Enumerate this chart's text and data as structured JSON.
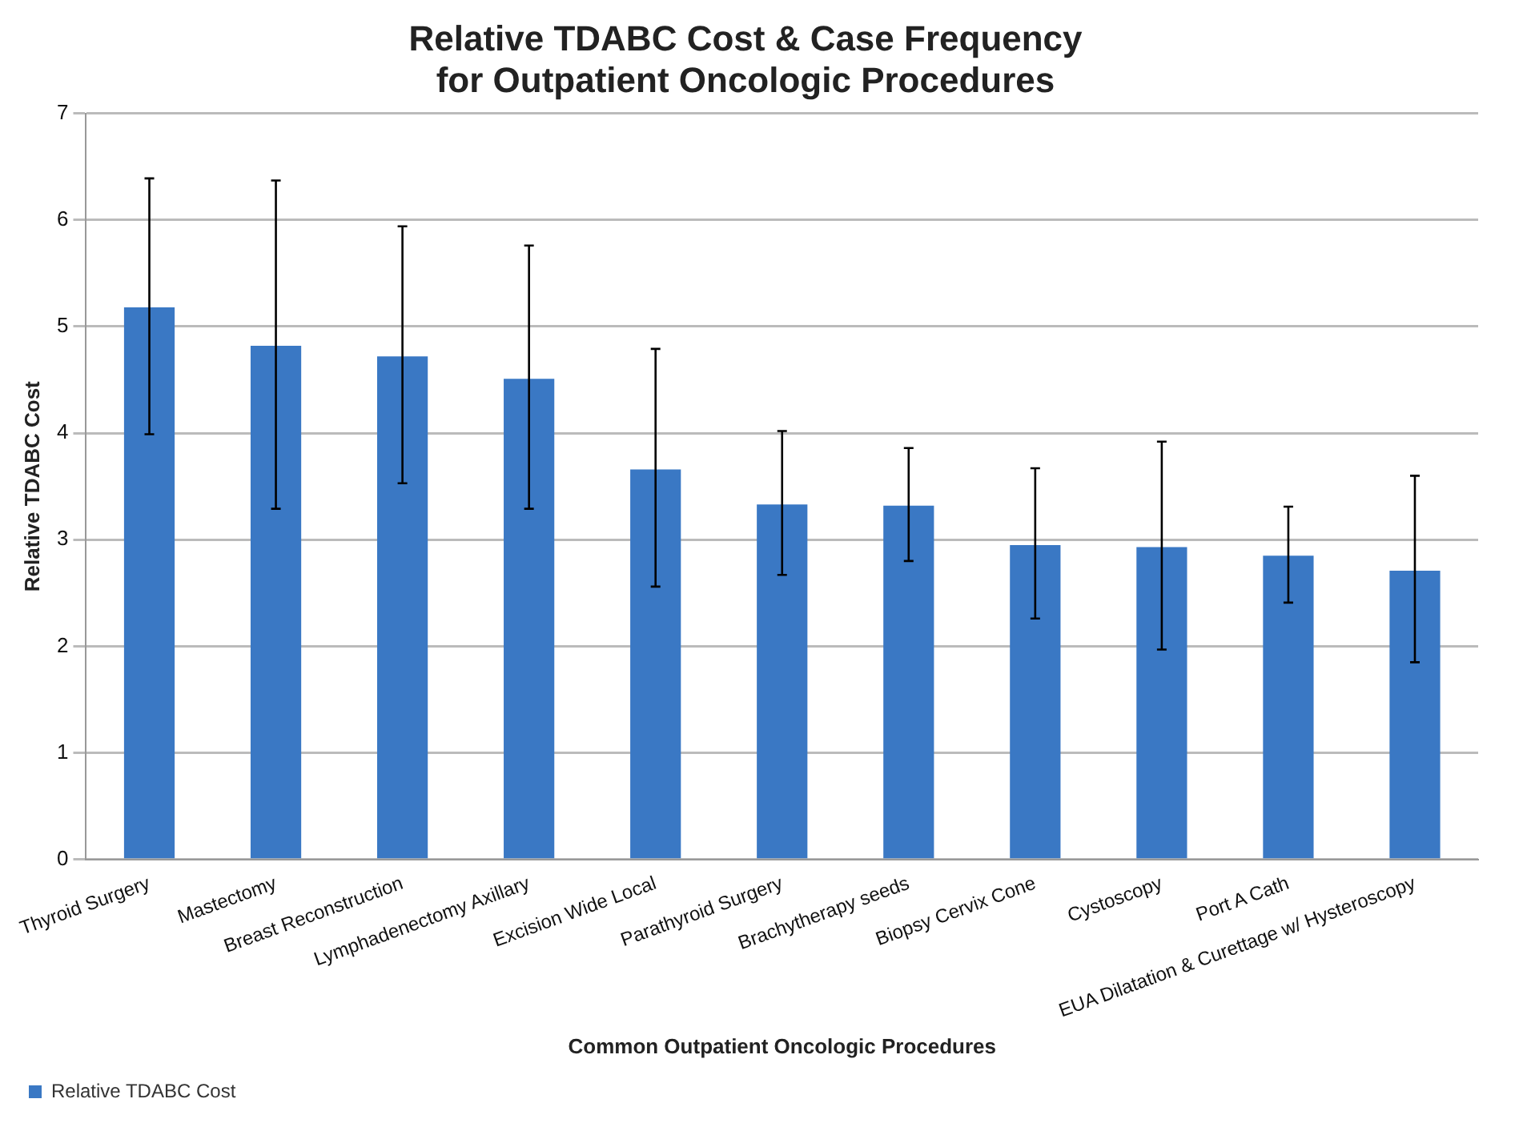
{
  "chart_data": {
    "type": "bar",
    "title": "Relative TDABC Cost & Case Frequency\nfor Outpatient Oncologic Procedures",
    "xlabel": "Common Outpatient Oncologic Procedures",
    "ylabel": "Relative TDABC Cost",
    "categories": [
      "Thyroid Surgery",
      "Mastectomy",
      "Breast Reconstruction",
      "Lymphadenectomy Axillary",
      "Excision Wide Local",
      "Parathyroid Surgery",
      "Brachytherapy seeds",
      "Biopsy Cervix Cone",
      "Cystoscopy",
      "Port A Cath",
      "EUA Dilatation & Curettage w/ Hysteroscopy"
    ],
    "series": [
      {
        "name": "Relative TDABC Cost",
        "color": "#3a78c4",
        "values": [
          5.18,
          4.82,
          4.72,
          4.51,
          3.66,
          3.33,
          3.32,
          2.95,
          2.93,
          2.85,
          2.71
        ],
        "errors": [
          [
            3.99,
            6.39
          ],
          [
            3.29,
            6.37
          ],
          [
            3.53,
            5.94
          ],
          [
            3.29,
            5.76
          ],
          [
            2.56,
            4.79
          ],
          [
            2.67,
            4.02
          ],
          [
            2.8,
            3.86
          ],
          [
            2.26,
            3.67
          ],
          [
            1.97,
            3.92
          ],
          [
            2.41,
            3.31
          ],
          [
            1.85,
            3.6
          ]
        ]
      }
    ],
    "ylim": [
      0,
      7
    ],
    "yticks": [
      0,
      1,
      2,
      3,
      4,
      5,
      6,
      7
    ],
    "grid": "y",
    "legend": "bottom left"
  }
}
